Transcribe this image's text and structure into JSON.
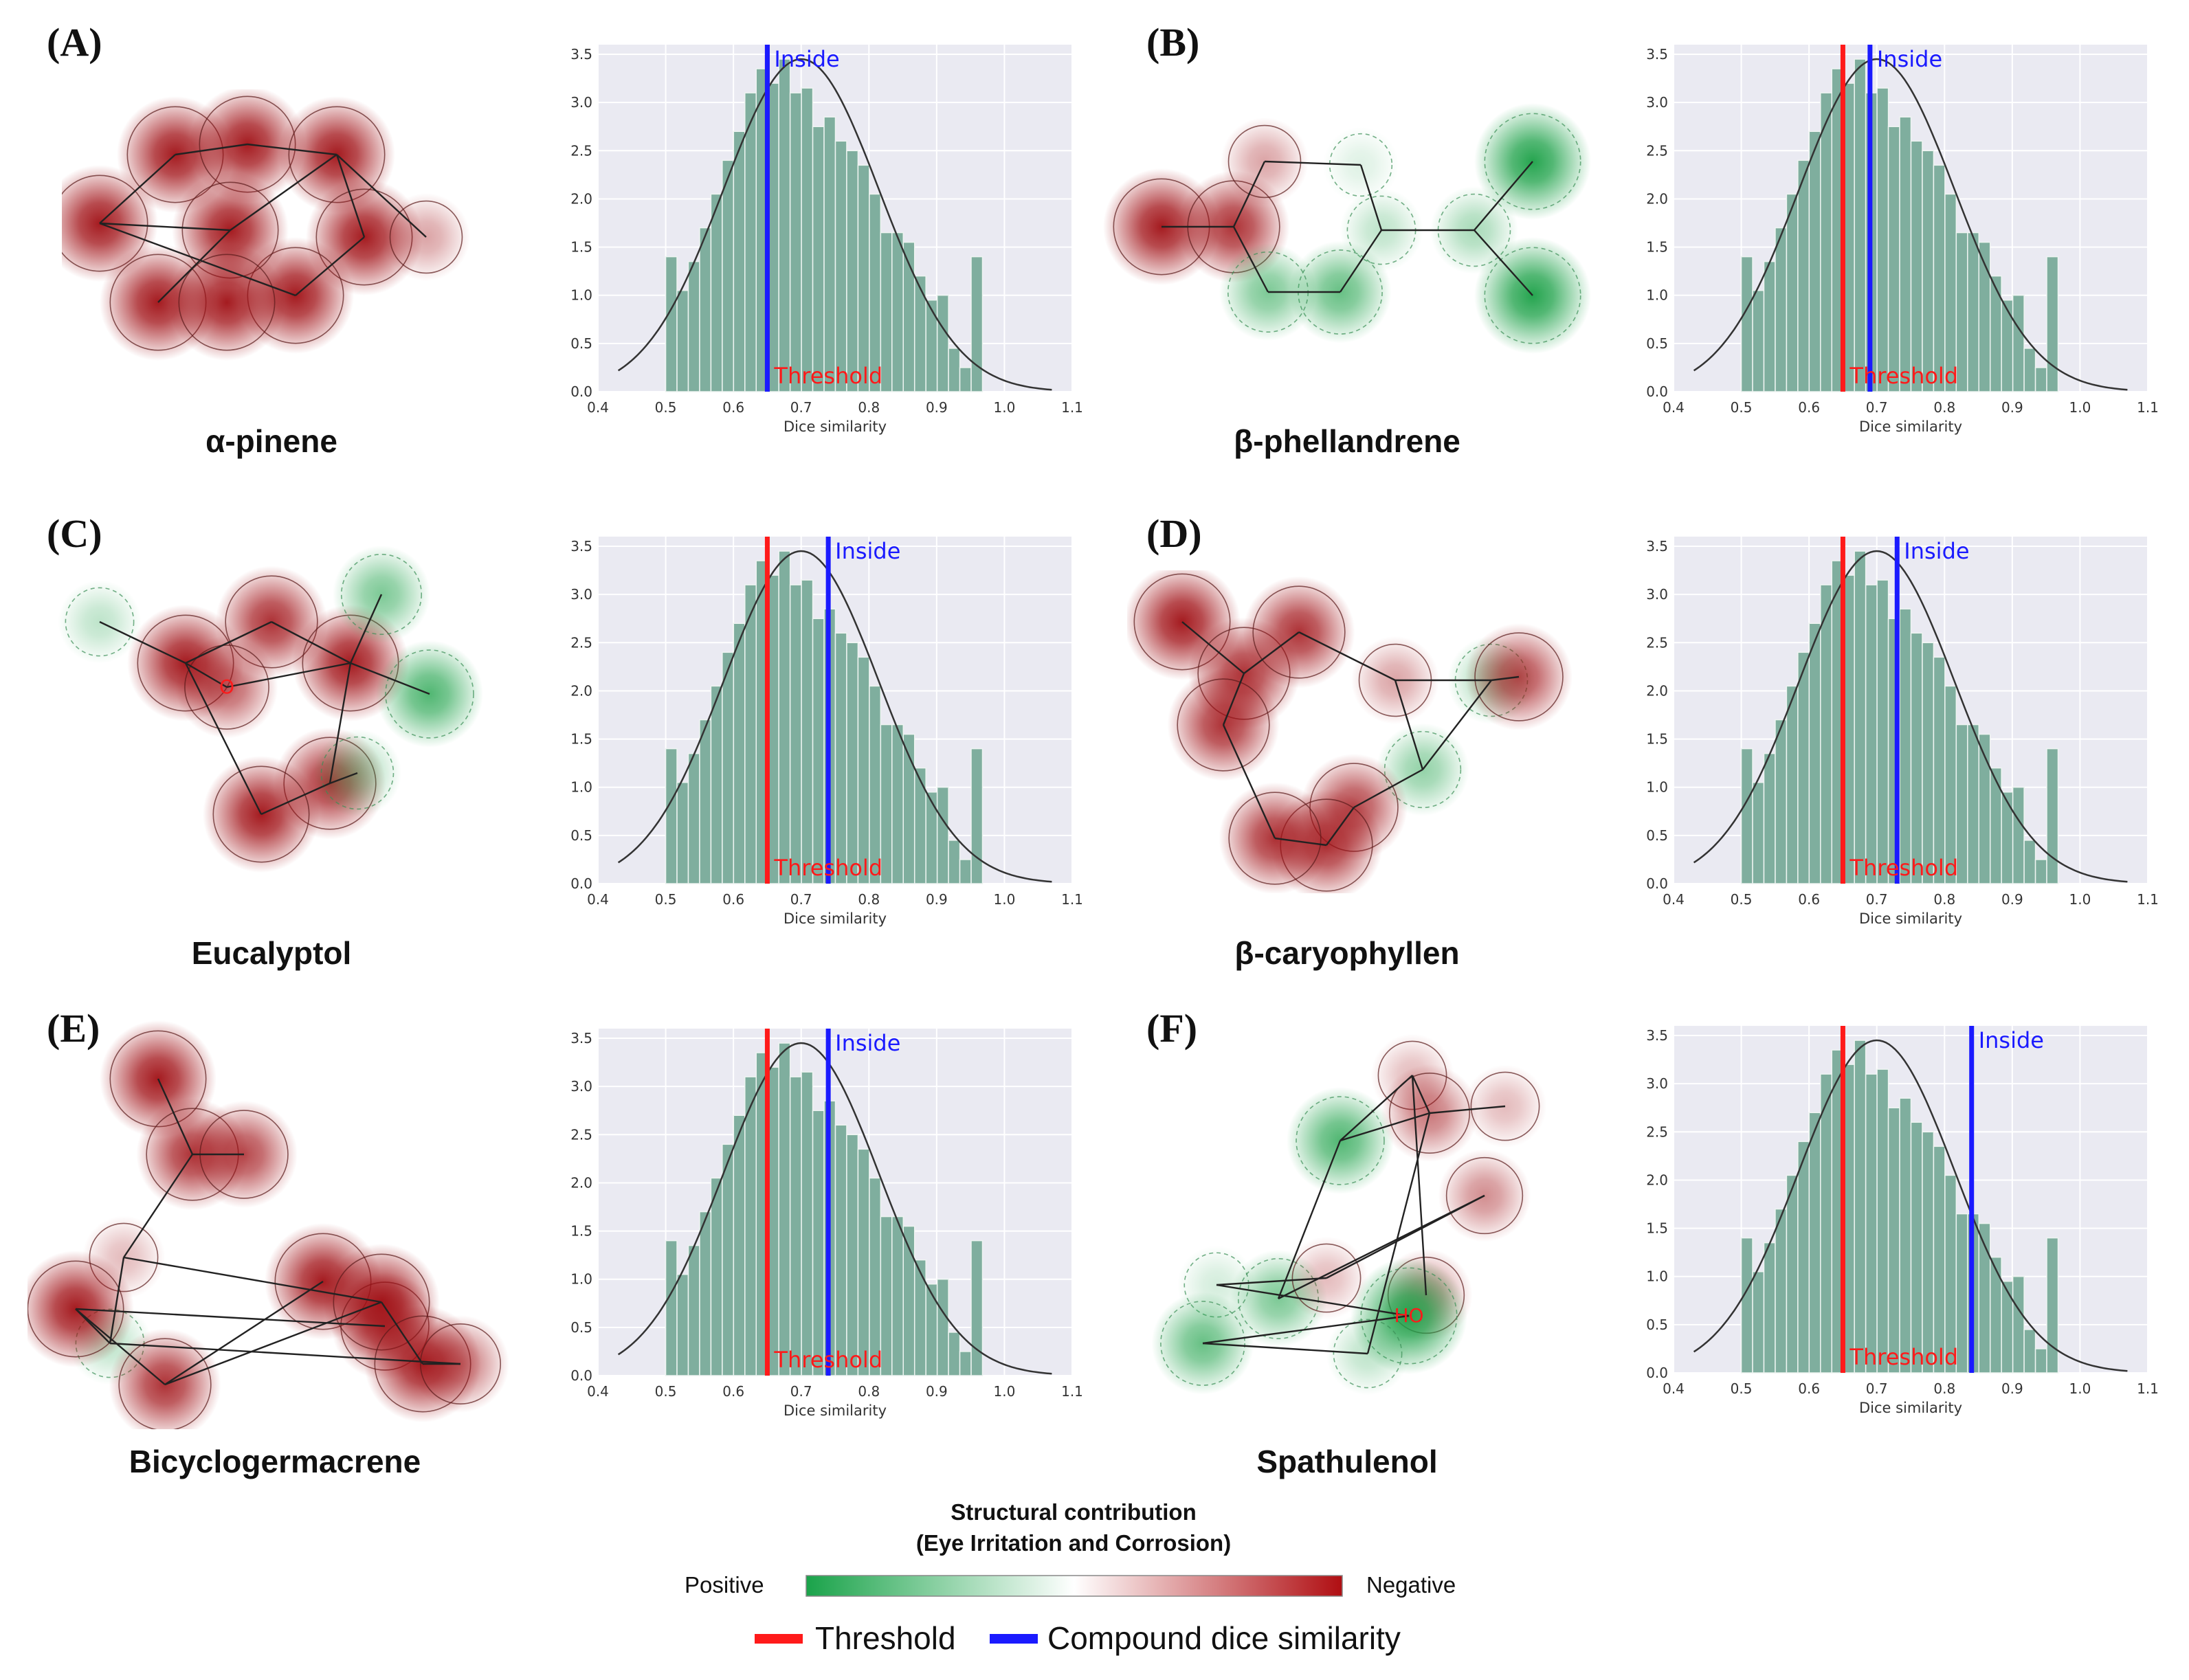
{
  "panels": [
    {
      "letter": "(A)",
      "compound": "α-pinene"
    },
    {
      "letter": "(B)",
      "compound": "β-phellandrene"
    },
    {
      "letter": "(C)",
      "compound": "Eucalyptol"
    },
    {
      "letter": "(D)",
      "compound": "β-caryophyllen"
    },
    {
      "letter": "(E)",
      "compound": "Bicyclogermacrene"
    },
    {
      "letter": "(F)",
      "compound": "Spathulenol"
    }
  ],
  "chart_data": [
    {
      "type": "bar",
      "panel": "(A)",
      "xlabel": "Dice similarity",
      "xlim": [
        0.4,
        1.1
      ],
      "ylim": [
        0,
        3.6
      ],
      "xticks": [
        "0.4",
        "0.5",
        "0.6",
        "0.7",
        "0.8",
        "0.9",
        "1.0",
        "1.1"
      ],
      "yticks": [
        "0.0",
        "0.5",
        "1.0",
        "1.5",
        "2.0",
        "2.5",
        "3.0",
        "3.5"
      ],
      "bin_start": 0.5,
      "bin_width": 0.0167,
      "values": [
        1.4,
        1.05,
        1.35,
        1.7,
        2.05,
        2.4,
        2.7,
        3.1,
        3.35,
        3.2,
        3.45,
        3.1,
        3.15,
        2.75,
        2.85,
        2.6,
        2.5,
        2.35,
        2.05,
        1.65,
        1.65,
        1.55,
        1.2,
        0.95,
        1.0,
        0.45,
        0.25,
        1.4
      ],
      "curve": {
        "mean": 0.7,
        "sd": 0.115,
        "peak": 3.45,
        "from": 0.43,
        "to": 1.07
      },
      "threshold": {
        "value": 0.65,
        "label": "Threshold",
        "color": "#ff1a1a"
      },
      "compound": {
        "value": 0.65,
        "label": "Inside",
        "color": "#1a1aff"
      }
    },
    {
      "type": "bar",
      "panel": "(B)",
      "xlabel": "Dice similarity",
      "xlim": [
        0.4,
        1.1
      ],
      "ylim": [
        0,
        3.6
      ],
      "xticks": [
        "0.4",
        "0.5",
        "0.6",
        "0.7",
        "0.8",
        "0.9",
        "1.0",
        "1.1"
      ],
      "yticks": [
        "0.0",
        "0.5",
        "1.0",
        "1.5",
        "2.0",
        "2.5",
        "3.0",
        "3.5"
      ],
      "bin_start": 0.5,
      "bin_width": 0.0167,
      "values": [
        1.4,
        1.05,
        1.35,
        1.7,
        2.05,
        2.4,
        2.7,
        3.1,
        3.35,
        3.2,
        3.45,
        3.1,
        3.15,
        2.75,
        2.85,
        2.6,
        2.5,
        2.35,
        2.05,
        1.65,
        1.65,
        1.55,
        1.2,
        0.95,
        1.0,
        0.45,
        0.25,
        1.4
      ],
      "curve": {
        "mean": 0.7,
        "sd": 0.115,
        "peak": 3.45,
        "from": 0.43,
        "to": 1.07
      },
      "threshold": {
        "value": 0.65,
        "label": "Threshold",
        "color": "#ff1a1a"
      },
      "compound": {
        "value": 0.69,
        "label": "Inside",
        "color": "#1a1aff"
      }
    },
    {
      "type": "bar",
      "panel": "(C)",
      "xlabel": "Dice similarity",
      "xlim": [
        0.4,
        1.1
      ],
      "ylim": [
        0,
        3.6
      ],
      "xticks": [
        "0.4",
        "0.5",
        "0.6",
        "0.7",
        "0.8",
        "0.9",
        "1.0",
        "1.1"
      ],
      "yticks": [
        "0.0",
        "0.5",
        "1.0",
        "1.5",
        "2.0",
        "2.5",
        "3.0",
        "3.5"
      ],
      "bin_start": 0.5,
      "bin_width": 0.0167,
      "values": [
        1.4,
        1.05,
        1.35,
        1.7,
        2.05,
        2.4,
        2.7,
        3.1,
        3.35,
        3.2,
        3.45,
        3.1,
        3.15,
        2.75,
        2.85,
        2.6,
        2.5,
        2.35,
        2.05,
        1.65,
        1.65,
        1.55,
        1.2,
        0.95,
        1.0,
        0.45,
        0.25,
        1.4
      ],
      "curve": {
        "mean": 0.7,
        "sd": 0.115,
        "peak": 3.45,
        "from": 0.43,
        "to": 1.07
      },
      "threshold": {
        "value": 0.65,
        "label": "Threshold",
        "color": "#ff1a1a"
      },
      "compound": {
        "value": 0.74,
        "label": "Inside",
        "color": "#1a1aff"
      }
    },
    {
      "type": "bar",
      "panel": "(D)",
      "xlabel": "Dice similarity",
      "xlim": [
        0.4,
        1.1
      ],
      "ylim": [
        0,
        3.6
      ],
      "xticks": [
        "0.4",
        "0.5",
        "0.6",
        "0.7",
        "0.8",
        "0.9",
        "1.0",
        "1.1"
      ],
      "yticks": [
        "0.0",
        "0.5",
        "1.0",
        "1.5",
        "2.0",
        "2.5",
        "3.0",
        "3.5"
      ],
      "bin_start": 0.5,
      "bin_width": 0.0167,
      "values": [
        1.4,
        1.05,
        1.35,
        1.7,
        2.05,
        2.4,
        2.7,
        3.1,
        3.35,
        3.2,
        3.45,
        3.1,
        3.15,
        2.75,
        2.85,
        2.6,
        2.5,
        2.35,
        2.05,
        1.65,
        1.65,
        1.55,
        1.2,
        0.95,
        1.0,
        0.45,
        0.25,
        1.4
      ],
      "curve": {
        "mean": 0.7,
        "sd": 0.115,
        "peak": 3.45,
        "from": 0.43,
        "to": 1.07
      },
      "threshold": {
        "value": 0.65,
        "label": "Threshold",
        "color": "#ff1a1a"
      },
      "compound": {
        "value": 0.73,
        "label": "Inside",
        "color": "#1a1aff"
      }
    },
    {
      "type": "bar",
      "panel": "(E)",
      "xlabel": "Dice similarity",
      "xlim": [
        0.4,
        1.1
      ],
      "ylim": [
        0,
        3.6
      ],
      "xticks": [
        "0.4",
        "0.5",
        "0.6",
        "0.7",
        "0.8",
        "0.9",
        "1.0",
        "1.1"
      ],
      "yticks": [
        "0.0",
        "0.5",
        "1.0",
        "1.5",
        "2.0",
        "2.5",
        "3.0",
        "3.5"
      ],
      "bin_start": 0.5,
      "bin_width": 0.0167,
      "values": [
        1.4,
        1.05,
        1.35,
        1.7,
        2.05,
        2.4,
        2.7,
        3.1,
        3.35,
        3.2,
        3.45,
        3.1,
        3.15,
        2.75,
        2.85,
        2.6,
        2.5,
        2.35,
        2.05,
        1.65,
        1.65,
        1.55,
        1.2,
        0.95,
        1.0,
        0.45,
        0.25,
        1.4
      ],
      "curve": {
        "mean": 0.7,
        "sd": 0.115,
        "peak": 3.45,
        "from": 0.43,
        "to": 1.07
      },
      "threshold": {
        "value": 0.65,
        "label": "Threshold",
        "color": "#ff1a1a"
      },
      "compound": {
        "value": 0.74,
        "label": "Inside",
        "color": "#1a1aff"
      }
    },
    {
      "type": "bar",
      "panel": "(F)",
      "xlabel": "Dice similarity",
      "xlim": [
        0.4,
        1.1
      ],
      "ylim": [
        0,
        3.6
      ],
      "xticks": [
        "0.4",
        "0.5",
        "0.6",
        "0.7",
        "0.8",
        "0.9",
        "1.0",
        "1.1"
      ],
      "yticks": [
        "0.0",
        "0.5",
        "1.0",
        "1.5",
        "2.0",
        "2.5",
        "3.0",
        "3.5"
      ],
      "bin_start": 0.5,
      "bin_width": 0.0167,
      "values": [
        1.4,
        1.05,
        1.35,
        1.7,
        2.05,
        2.4,
        2.7,
        3.1,
        3.35,
        3.2,
        3.45,
        3.1,
        3.15,
        2.75,
        2.85,
        2.6,
        2.5,
        2.35,
        2.05,
        1.65,
        1.65,
        1.55,
        1.2,
        0.95,
        1.0,
        0.45,
        0.25,
        1.4
      ],
      "curve": {
        "mean": 0.7,
        "sd": 0.115,
        "peak": 3.45,
        "from": 0.43,
        "to": 1.07
      },
      "threshold": {
        "value": 0.65,
        "label": "Threshold",
        "color": "#ff1a1a"
      },
      "compound": {
        "value": 0.84,
        "label": "Inside",
        "color": "#1a1aff"
      }
    }
  ],
  "molecules": [
    {
      "atoms": [
        {
          "w": -1
        },
        {
          "w": -1
        },
        {
          "w": -1
        },
        {
          "w": -1
        },
        {
          "w": -1
        },
        {
          "w": -1
        },
        {
          "w": -1
        },
        {
          "w": -1
        },
        {
          "w": -1
        },
        {
          "w": -0.4
        }
      ],
      "bonds": [
        [
          0,
          1
        ],
        [
          1,
          2
        ],
        [
          2,
          3
        ],
        [
          3,
          4
        ],
        [
          4,
          5
        ],
        [
          5,
          0
        ],
        [
          0,
          6
        ],
        [
          6,
          3
        ],
        [
          6,
          7
        ],
        [
          3,
          9
        ]
      ],
      "labels": []
    },
    {
      "atoms": [
        {
          "w": -1
        },
        {
          "w": -0.9
        },
        {
          "w": -0.4
        },
        {
          "w": 0
        },
        {
          "w": 0.3
        },
        {
          "w": 0.7
        },
        {
          "w": 0.6
        },
        {
          "w": 0.4
        },
        {
          "w": 1
        },
        {
          "w": 1
        }
      ],
      "bonds": [
        [
          0,
          1
        ],
        [
          1,
          2
        ],
        [
          2,
          3
        ],
        [
          3,
          4
        ],
        [
          4,
          5
        ],
        [
          5,
          6
        ],
        [
          6,
          1
        ],
        [
          4,
          7
        ],
        [
          7,
          8
        ],
        [
          7,
          9
        ]
      ],
      "labels": []
    },
    {
      "atoms": [
        {
          "w": -1
        },
        {
          "w": -0.9
        },
        {
          "w": -1
        },
        {
          "w": -0.9
        },
        {
          "w": -1
        },
        {
          "w": -0.7
        },
        {
          "w": 0.6
        },
        {
          "w": 0.3
        },
        {
          "w": 0.8
        },
        {
          "w": 0.4
        }
      ],
      "bonds": [
        [
          0,
          1
        ],
        [
          1,
          2
        ],
        [
          2,
          3
        ],
        [
          3,
          4
        ],
        [
          4,
          0
        ],
        [
          0,
          5
        ],
        [
          5,
          2
        ],
        [
          2,
          6
        ],
        [
          0,
          7
        ],
        [
          2,
          8
        ],
        [
          3,
          9
        ]
      ],
      "labels": [
        {
          "atom": 5,
          "text": "O",
          "color": "#ff1a1a"
        }
      ]
    },
    {
      "atoms": [
        {
          "w": -1
        },
        {
          "w": -0.9
        },
        {
          "w": -0.9
        },
        {
          "w": -0.9
        },
        {
          "w": -0.4
        },
        {
          "w": 0.5
        },
        {
          "w": 0.4
        },
        {
          "w": -0.8
        },
        {
          "w": -0.9
        },
        {
          "w": -0.9
        },
        {
          "w": -0.8
        }
      ],
      "bonds": [
        [
          0,
          1
        ],
        [
          1,
          2
        ],
        [
          1,
          3
        ],
        [
          2,
          4
        ],
        [
          4,
          5
        ],
        [
          5,
          6
        ],
        [
          6,
          10
        ],
        [
          5,
          7
        ],
        [
          7,
          8
        ],
        [
          8,
          9
        ],
        [
          9,
          3
        ],
        [
          6,
          4
        ]
      ],
      "labels": []
    },
    {
      "atoms": [
        {
          "w": -1
        },
        {
          "w": -0.9
        },
        {
          "w": -0.8
        },
        {
          "w": -0.3
        },
        {
          "w": 0.3
        },
        {
          "w": -1
        },
        {
          "w": -0.9
        },
        {
          "w": -1
        },
        {
          "w": -0.8
        },
        {
          "w": -1
        },
        {
          "w": -1
        },
        {
          "w": -0.6
        }
      ],
      "bonds": [
        [
          0,
          1
        ],
        [
          1,
          2
        ],
        [
          1,
          3
        ],
        [
          3,
          4
        ],
        [
          4,
          5
        ],
        [
          5,
          6
        ],
        [
          6,
          7
        ],
        [
          5,
          8
        ],
        [
          6,
          9
        ],
        [
          9,
          10
        ],
        [
          10,
          11
        ],
        [
          11,
          4
        ],
        [
          3,
          9
        ]
      ],
      "labels": []
    },
    {
      "atoms": [
        {
          "w": 0.6
        },
        {
          "w": 0.8
        },
        {
          "w": -0.3
        },
        {
          "w": -0.5
        },
        {
          "w": -0.6
        },
        {
          "w": -0.3
        },
        {
          "w": -0.5
        },
        {
          "w": -0.3
        },
        {
          "w": 0.2
        },
        {
          "w": 1
        },
        {
          "w": 0.7
        },
        {
          "w": 0.3
        }
      ],
      "bonds": [
        [
          0,
          1
        ],
        [
          1,
          2
        ],
        [
          2,
          3
        ],
        [
          2,
          4
        ],
        [
          1,
          4
        ],
        [
          4,
          5
        ],
        [
          0,
          6
        ],
        [
          6,
          7
        ],
        [
          7,
          8
        ],
        [
          8,
          9
        ],
        [
          9,
          10
        ],
        [
          10,
          11
        ],
        [
          11,
          4
        ]
      ],
      "labels": [
        {
          "atom": 9,
          "text": "HO",
          "color": "#ff1a1a"
        }
      ]
    }
  ],
  "legend": {
    "title_line1": "Structural contribution",
    "title_line2": "(Eye Irritation and Corrosion)",
    "positive_label": "Positive",
    "negative_label": "Negative",
    "threshold_key": "Threshold",
    "compound_key": "Compound dice similarity",
    "positive_color": "#1aa34a",
    "negative_color": "#b00e12",
    "threshold_color": "#ff1a1a",
    "compound_color": "#1a1aff"
  }
}
